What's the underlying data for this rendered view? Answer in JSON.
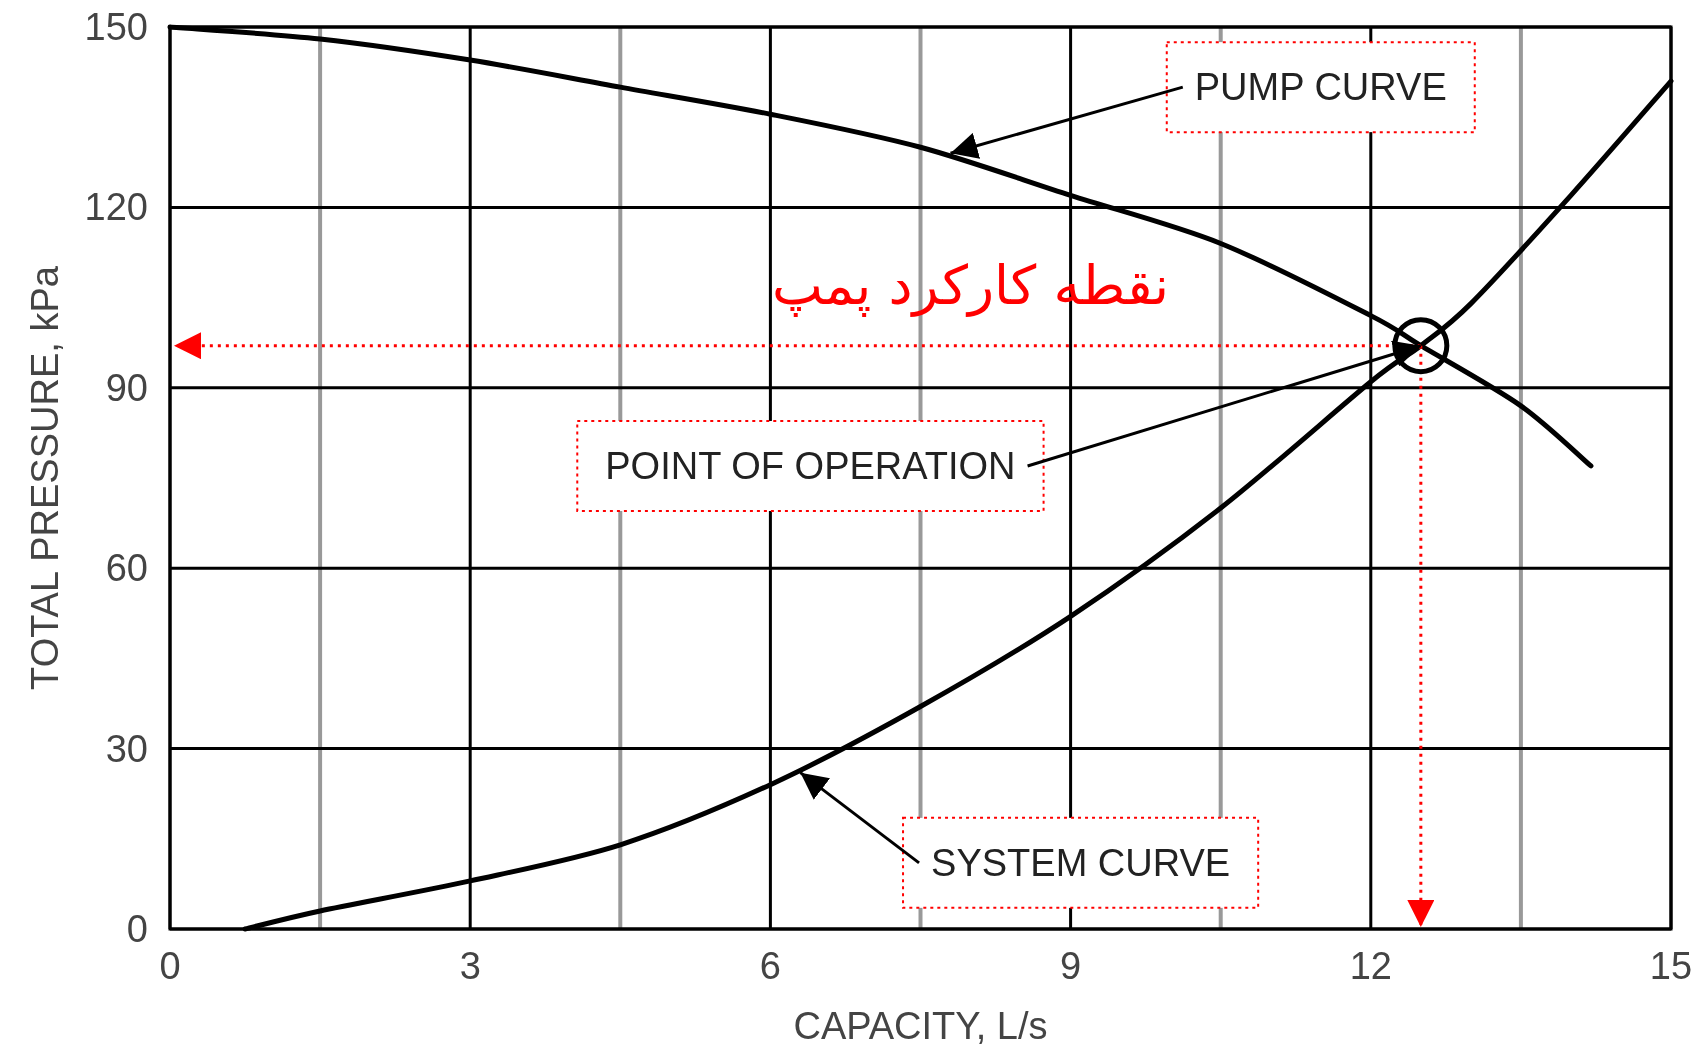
{
  "chart_data": {
    "type": "line",
    "xlabel": "CAPACITY, L/s",
    "ylabel": "TOTAL PRESSURE, kPa",
    "xlim": [
      0,
      15
    ],
    "ylim": [
      0,
      150
    ],
    "xticks": [
      0,
      3,
      6,
      9,
      12,
      15
    ],
    "yticks": [
      0,
      30,
      60,
      90,
      120,
      150
    ],
    "grid": true,
    "series": [
      {
        "color": "#000000",
        "x": [
          0,
          1.5,
          3,
          4.5,
          6,
          7.5,
          9,
          10.5,
          12,
          12.5,
          13.5,
          14.2
        ],
        "values": [
          150,
          148,
          144.5,
          140,
          135.5,
          130,
          122,
          114,
          102,
          97,
          87,
          77
        ]
      },
      {
        "color": "#000000",
        "x": [
          0.75,
          1.5,
          3,
          4.5,
          6,
          7.5,
          9,
          10.5,
          12,
          12.5,
          13,
          14,
          15
        ],
        "values": [
          0,
          3,
          8,
          14,
          24,
          37,
          52,
          70,
          91,
          97,
          104,
          122,
          141
        ]
      }
    ],
    "ref_lines": [
      {
        "axis": "y",
        "value": 97,
        "color": "#ff0000",
        "line_style": "dotted"
      },
      {
        "axis": "x",
        "value": 12.5,
        "color": "#ff0000",
        "line_style": "dotted"
      }
    ],
    "annotations": [
      {
        "text": "PUMP CURVE",
        "x": 7.8,
        "y": 129
      },
      {
        "text": "POINT OF OPERATION",
        "x": 12.5,
        "y": 97
      },
      {
        "text": "SYSTEM CURVE",
        "x": 6.3,
        "y": 26
      },
      "نقطه کارکرد پمپ"
    ]
  }
}
